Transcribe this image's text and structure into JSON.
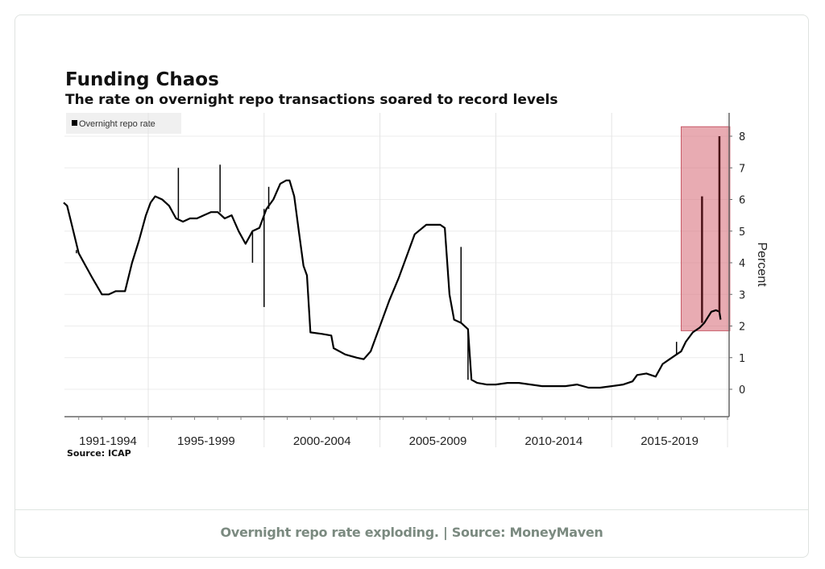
{
  "caption": "Overnight repo rate exploding. | Source: MoneyMaven",
  "chart_data": {
    "type": "line",
    "title": "Funding Chaos",
    "subtitle": "The rate on overnight repo transactions soared to record levels",
    "source": "Source: ICAP",
    "ylabel": "Percent",
    "ylim": [
      -0.9,
      8.7
    ],
    "xlim": [
      1991.0,
      2020.1
    ],
    "yticks": [
      0,
      1,
      2,
      3,
      4,
      5,
      6,
      7,
      8
    ],
    "ytick_labels": [
      "0",
      "1",
      "2",
      "3",
      "4",
      "5",
      "6",
      "7",
      "8"
    ],
    "y_axis_side": "right",
    "grid": true,
    "legend": {
      "position": "top-left",
      "entries": [
        "Overnight repo rate"
      ]
    },
    "x_groups": [
      {
        "label": "1991-1994",
        "start": 1991,
        "end": 1995
      },
      {
        "label": "1995-1999",
        "start": 1995,
        "end": 2000
      },
      {
        "label": "2000-2004",
        "start": 2000,
        "end": 2005
      },
      {
        "label": "2005-2009",
        "start": 2005,
        "end": 2010
      },
      {
        "label": "2010-2014",
        "start": 2010,
        "end": 2015
      },
      {
        "label": "2015-2019",
        "start": 2015,
        "end": 2020
      }
    ],
    "series": [
      {
        "name": "Overnight repo rate",
        "color": "#000000",
        "x": [
          1991.35,
          1991.5,
          1991.7,
          1992.0,
          1992.3,
          1992.6,
          1993.0,
          1993.3,
          1993.6,
          1994.0,
          1994.3,
          1994.6,
          1994.9,
          1995.1,
          1995.3,
          1995.6,
          1995.9,
          1996.2,
          1996.5,
          1996.8,
          1997.1,
          1997.4,
          1997.7,
          1998.0,
          1998.3,
          1998.6,
          1998.9,
          1999.2,
          1999.5,
          1999.8,
          2000.1,
          2000.4,
          2000.7,
          2000.95,
          2001.1,
          2001.3,
          2001.5,
          2001.7,
          2001.85,
          2002.0,
          2002.5,
          2002.9,
          2003.0,
          2003.5,
          2004.0,
          2004.3,
          2004.6,
          2005.0,
          2005.4,
          2005.8,
          2006.2,
          2006.5,
          2007.0,
          2007.4,
          2007.6,
          2007.8,
          2008.0,
          2008.2,
          2008.5,
          2008.8,
          2008.95,
          2009.2,
          2009.6,
          2010.0,
          2010.5,
          2011.0,
          2011.5,
          2012.0,
          2012.5,
          2013.0,
          2013.5,
          2014.0,
          2014.5,
          2015.0,
          2015.5,
          2015.9,
          2016.1,
          2016.5,
          2016.9,
          2017.2,
          2017.5,
          2017.8,
          2018.0,
          2018.2,
          2018.5,
          2018.8,
          2019.0,
          2019.3,
          2019.5,
          2019.65,
          2019.7
        ],
        "y": [
          5.9,
          5.8,
          5.2,
          4.3,
          3.9,
          3.5,
          3.0,
          3.0,
          3.1,
          3.1,
          4.0,
          4.7,
          5.5,
          5.9,
          6.1,
          6.0,
          5.8,
          5.4,
          5.3,
          5.4,
          5.4,
          5.5,
          5.6,
          5.6,
          5.4,
          5.5,
          5.0,
          4.6,
          5.0,
          5.1,
          5.7,
          6.0,
          6.5,
          6.6,
          6.6,
          6.1,
          5.0,
          3.9,
          3.6,
          1.8,
          1.75,
          1.7,
          1.3,
          1.1,
          1.0,
          0.95,
          1.2,
          2.0,
          2.8,
          3.5,
          4.3,
          4.9,
          5.2,
          5.2,
          5.2,
          5.1,
          3.0,
          2.2,
          2.1,
          1.9,
          0.3,
          0.2,
          0.15,
          0.15,
          0.2,
          0.2,
          0.15,
          0.1,
          0.1,
          0.1,
          0.15,
          0.05,
          0.05,
          0.1,
          0.15,
          0.25,
          0.45,
          0.5,
          0.4,
          0.8,
          0.95,
          1.1,
          1.2,
          1.5,
          1.8,
          1.95,
          2.1,
          2.45,
          2.5,
          2.45,
          2.2
        ]
      }
    ],
    "spikes": [
      {
        "x": 1991.9,
        "y": 4.4
      },
      {
        "x": 1996.3,
        "y": 7.0
      },
      {
        "x": 1998.1,
        "y": 7.1
      },
      {
        "x": 1999.5,
        "y": 4.0
      },
      {
        "x": 2000.0,
        "y": 2.6
      },
      {
        "x": 2000.2,
        "y": 6.4
      },
      {
        "x": 2008.5,
        "y": 4.5
      },
      {
        "x": 2008.8,
        "y": 0.3
      },
      {
        "x": 2017.8,
        "y": 1.5
      },
      {
        "x": 2018.9,
        "y": 6.1
      },
      {
        "x": 2019.65,
        "y": 8.0
      }
    ],
    "highlight": {
      "x": [
        2018.0,
        2020.1
      ],
      "y": [
        1.85,
        8.3
      ],
      "color": "#d9737f"
    }
  }
}
